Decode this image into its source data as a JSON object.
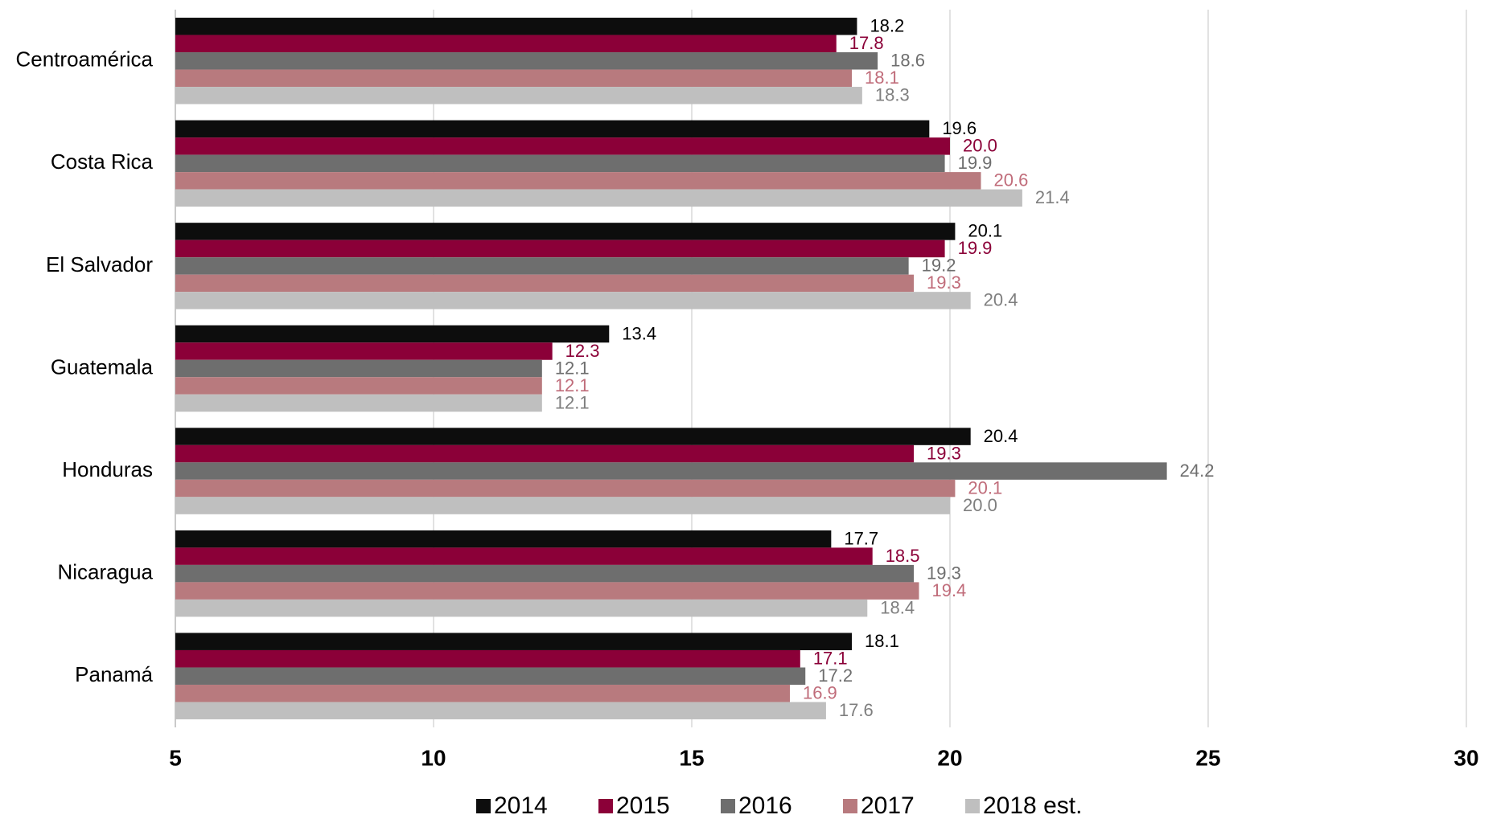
{
  "chart_data": {
    "type": "barh",
    "categories": [
      "Centroamérica",
      "Costa Rica",
      "El Salvador",
      "Guatemala",
      "Honduras",
      "Nicaragua",
      "Panamá"
    ],
    "series": [
      {
        "name": "2014",
        "color": "#0d0d0d",
        "label_color": "#000000",
        "values": [
          18.2,
          19.6,
          20.1,
          13.4,
          20.4,
          17.7,
          18.1
        ],
        "value_labels": [
          "18.2",
          "19.6",
          "20.1",
          "13.4",
          "20.4",
          "17.7",
          "18.1"
        ]
      },
      {
        "name": "2015",
        "color": "#8b0038",
        "label_color": "#8b0038",
        "values": [
          17.8,
          20.0,
          19.9,
          12.3,
          19.3,
          18.5,
          17.1
        ],
        "value_labels": [
          "17.8",
          "20.0",
          "19.9",
          "12.3",
          "19.3",
          "18.5",
          "17.1"
        ]
      },
      {
        "name": "2016",
        "color": "#6e6e6e",
        "label_color": "#6e6e6e",
        "values": [
          18.6,
          19.9,
          19.2,
          12.1,
          24.2,
          19.3,
          17.2
        ],
        "value_labels": [
          "18.6",
          "19.9",
          "19.2",
          "12.1",
          "24.2",
          "19.3",
          "17.2"
        ]
      },
      {
        "name": "2017",
        "color": "#b87a7e",
        "label_color": "#c06c7a",
        "values": [
          18.1,
          20.6,
          19.3,
          12.1,
          20.1,
          19.4,
          16.9
        ],
        "value_labels": [
          "18.1",
          "20.6",
          "19.3",
          "12.1",
          "20.1",
          "19.4",
          "16.9"
        ]
      },
      {
        "name": "2018 est.",
        "color": "#bfbfbf",
        "label_color": "#7f7f7f",
        "values": [
          18.3,
          21.4,
          20.4,
          12.1,
          20.0,
          18.4,
          17.6
        ],
        "value_labels": [
          "18.3",
          "21.4",
          "20.4",
          "12.1",
          "20.0",
          "18.4",
          "17.6"
        ]
      }
    ],
    "xlim": [
      5,
      30
    ],
    "xticks": [
      5,
      10,
      15,
      20,
      25,
      30
    ],
    "grid": true,
    "legend": "bottom"
  }
}
